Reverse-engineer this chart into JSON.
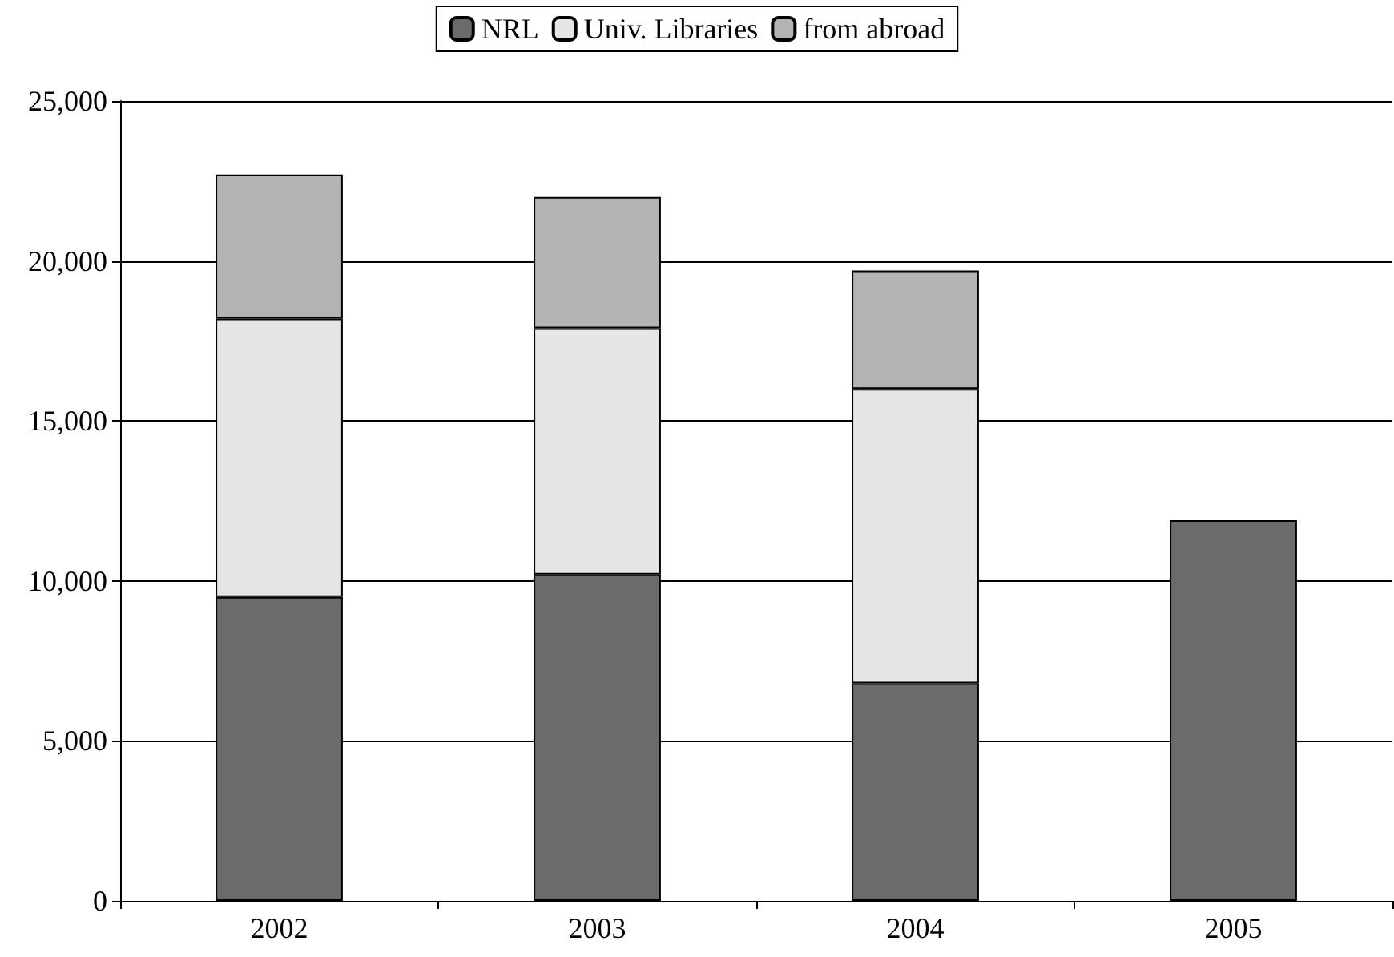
{
  "chart_data": {
    "type": "bar",
    "stacked": true,
    "categories": [
      "2002",
      "2003",
      "2004",
      "2005"
    ],
    "series": [
      {
        "name": "NRL",
        "color": "#6b6b6b",
        "values": [
          9500,
          10200,
          6800,
          11900
        ]
      },
      {
        "name": "Univ. Libraries",
        "color": "#e6e6e6",
        "values": [
          8700,
          7700,
          9200,
          null
        ]
      },
      {
        "name": "from abroad",
        "color": "#b3b3b3",
        "values": [
          4500,
          4100,
          3700,
          null
        ]
      }
    ],
    "ylim": [
      0,
      25000
    ],
    "yticks": [
      0,
      {
        "value": 5000,
        "label": "5,000"
      },
      {
        "value": 10000,
        "label": "10,000"
      },
      {
        "value": 15000,
        "label": "15,000"
      },
      {
        "value": 20000,
        "label": "20,000"
      },
      {
        "value": 25000,
        "label": "25,000"
      }
    ],
    "grid": "y",
    "legend": "top"
  }
}
